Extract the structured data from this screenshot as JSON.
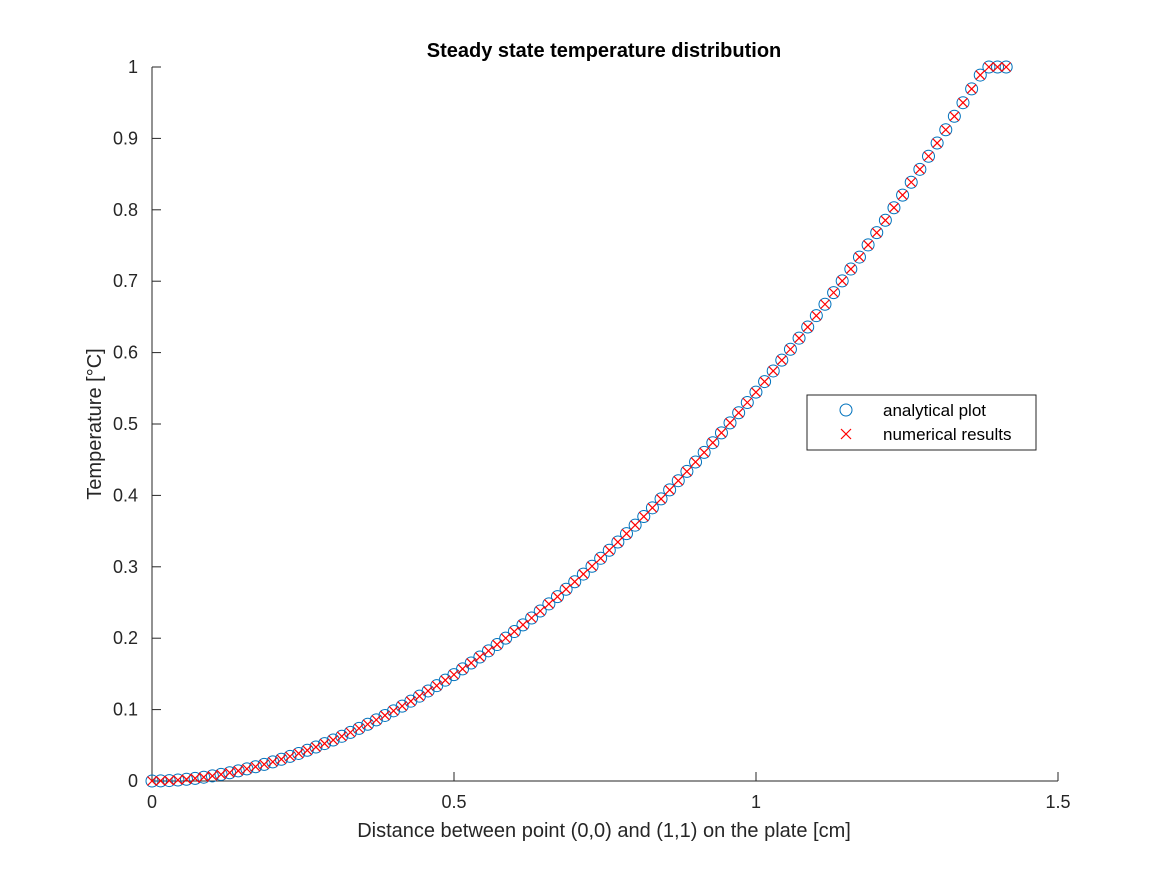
{
  "chart_data": {
    "type": "scatter",
    "title": "Steady state temperature distribution",
    "xlabel": "Distance between point (0,0) and (1,1) on the plate [cm]",
    "ylabel": "Temperature [°C]",
    "xlim": [
      0,
      1.5
    ],
    "ylim": [
      0,
      1
    ],
    "xticks": [
      0,
      0.5,
      1,
      1.5
    ],
    "xtick_labels": [
      "0",
      "0.5",
      "1",
      "1.5"
    ],
    "yticks": [
      0,
      0.1,
      0.2,
      0.3,
      0.4,
      0.5,
      0.6,
      0.7,
      0.8,
      0.9,
      1
    ],
    "ytick_labels": [
      "0",
      "0.1",
      "0.2",
      "0.3",
      "0.4",
      "0.5",
      "0.6",
      "0.7",
      "0.8",
      "0.9",
      "1"
    ],
    "grid": false,
    "legend_position": "right",
    "x": [
      0.0,
      0.0143,
      0.0286,
      0.0429,
      0.0571,
      0.0714,
      0.0857,
      0.1,
      0.1143,
      0.1286,
      0.1428,
      0.1571,
      0.1714,
      0.1857,
      0.2,
      0.2142,
      0.2285,
      0.2428,
      0.2571,
      0.2714,
      0.2857,
      0.3,
      0.3142,
      0.3285,
      0.3428,
      0.3571,
      0.3714,
      0.3857,
      0.3999,
      0.4142,
      0.4285,
      0.4428,
      0.4571,
      0.4714,
      0.4856,
      0.4999,
      0.5142,
      0.5285,
      0.5428,
      0.5571,
      0.5714,
      0.5856,
      0.5999,
      0.6142,
      0.6285,
      0.6428,
      0.6571,
      0.6713,
      0.6856,
      0.6999,
      0.7142,
      0.7285,
      0.7428,
      0.7571,
      0.7713,
      0.7856,
      0.7999,
      0.8142,
      0.8285,
      0.8428,
      0.857,
      0.8713,
      0.8856,
      0.8999,
      0.9142,
      0.9285,
      0.9428,
      0.957,
      0.9713,
      0.9856,
      0.9999,
      1.0142,
      1.0285,
      1.0427,
      1.057,
      1.0713,
      1.0856,
      1.0999,
      1.1142,
      1.1285,
      1.1427,
      1.157,
      1.1713,
      1.1856,
      1.1999,
      1.2142,
      1.2284,
      1.2427,
      1.257,
      1.2713,
      1.2856,
      1.2999,
      1.3142,
      1.3284,
      1.3427,
      1.357,
      1.3713,
      1.3856,
      1.3999,
      1.4142
    ],
    "series": [
      {
        "name": "analytical plot",
        "marker": "circle",
        "color": "#0072BD",
        "values": [
          0.0,
          0.0002,
          0.0006,
          0.0014,
          0.0024,
          0.0037,
          0.0053,
          0.0071,
          0.0092,
          0.0116,
          0.0142,
          0.017,
          0.02,
          0.0233,
          0.0268,
          0.0305,
          0.0345,
          0.0386,
          0.043,
          0.0476,
          0.0524,
          0.0574,
          0.0626,
          0.0681,
          0.0737,
          0.0795,
          0.0856,
          0.0918,
          0.0983,
          0.1049,
          0.1118,
          0.1188,
          0.1261,
          0.1335,
          0.1412,
          0.149,
          0.157,
          0.1653,
          0.1737,
          0.1823,
          0.1911,
          0.2001,
          0.2093,
          0.2187,
          0.2283,
          0.2381,
          0.248,
          0.2582,
          0.2686,
          0.2791,
          0.2898,
          0.3008,
          0.3119,
          0.3232,
          0.3347,
          0.3464,
          0.3583,
          0.3704,
          0.3826,
          0.3951,
          0.4077,
          0.4206,
          0.4336,
          0.4468,
          0.4602,
          0.4738,
          0.4876,
          0.5016,
          0.5157,
          0.5301,
          0.5446,
          0.5594,
          0.5743,
          0.5894,
          0.6047,
          0.6202,
          0.6358,
          0.6517,
          0.6677,
          0.684,
          0.7004,
          0.717,
          0.7338,
          0.7508,
          0.768,
          0.7853,
          0.8029,
          0.8206,
          0.8386,
          0.8567,
          0.875,
          0.8935,
          0.9121,
          0.931,
          0.95,
          0.9693,
          0.9887,
          1.0,
          1.0,
          1.0
        ]
      },
      {
        "name": "numerical results",
        "marker": "x",
        "color": "#FF0000",
        "values": [
          0.0,
          0.0002,
          0.0006,
          0.0014,
          0.0024,
          0.0037,
          0.0053,
          0.0071,
          0.0092,
          0.0116,
          0.0142,
          0.017,
          0.02,
          0.0233,
          0.0268,
          0.0305,
          0.0345,
          0.0386,
          0.043,
          0.0476,
          0.0524,
          0.0574,
          0.0626,
          0.0681,
          0.0737,
          0.0795,
          0.0856,
          0.0918,
          0.0983,
          0.1049,
          0.1118,
          0.1188,
          0.1261,
          0.1335,
          0.1412,
          0.149,
          0.157,
          0.1653,
          0.1737,
          0.1823,
          0.1911,
          0.2001,
          0.2093,
          0.2187,
          0.2283,
          0.2381,
          0.248,
          0.2582,
          0.2686,
          0.2791,
          0.2898,
          0.3008,
          0.3119,
          0.3232,
          0.3347,
          0.3464,
          0.3583,
          0.3704,
          0.3826,
          0.3951,
          0.4077,
          0.4206,
          0.4336,
          0.4468,
          0.4602,
          0.4738,
          0.4876,
          0.5016,
          0.5157,
          0.5301,
          0.5446,
          0.5594,
          0.5743,
          0.5894,
          0.6047,
          0.6202,
          0.6358,
          0.6517,
          0.6677,
          0.684,
          0.7004,
          0.717,
          0.7338,
          0.7508,
          0.768,
          0.7853,
          0.8029,
          0.8206,
          0.8386,
          0.8567,
          0.875,
          0.8935,
          0.9121,
          0.931,
          0.95,
          0.9693,
          0.9887,
          1.0,
          1.0,
          1.0
        ]
      }
    ]
  }
}
